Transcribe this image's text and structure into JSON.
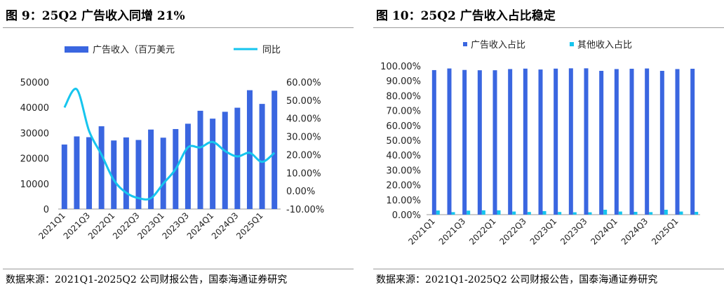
{
  "left_panel": {
    "title": "图 9：25Q2 广告收入同增 21%",
    "source": "数据来源：2021Q1-2025Q2 公司财报公告，国泰海通证券研究"
  },
  "right_panel": {
    "title": "图 10：25Q2 广告收入占比稳定",
    "source": "数据来源：2021Q1-2025Q2 公司财报公告，国泰海通证券研究"
  },
  "colors": {
    "blue": "#3a66e0",
    "cyan": "#16c5ee",
    "axis": "#999999"
  },
  "chart_data": [
    {
      "type": "bar",
      "title": "",
      "categories": [
        "2021Q1",
        "2021Q2",
        "2021Q3",
        "2021Q4",
        "2022Q1",
        "2022Q2",
        "2022Q3",
        "2022Q4",
        "2023Q1",
        "2023Q2",
        "2023Q3",
        "2023Q4",
        "2024Q1",
        "2024Q2",
        "2024Q3",
        "2024Q4",
        "2025Q1",
        "2025Q2"
      ],
      "x_tick_labels": [
        "2021Q1",
        "2021Q3",
        "2022Q1",
        "2022Q3",
        "2023Q1",
        "2023Q3",
        "2024Q1",
        "2024Q3",
        "2025Q1"
      ],
      "series": [
        {
          "name": "广告收入（百万美元",
          "type": "bar",
          "axis": "left",
          "values": [
            25400,
            28600,
            28300,
            32600,
            27000,
            28200,
            27200,
            31300,
            28100,
            31500,
            33600,
            38700,
            35600,
            38300,
            39900,
            46800,
            41400,
            46600
          ]
        },
        {
          "name": "同比",
          "type": "line",
          "axis": "right",
          "values": [
            46,
            56,
            33,
            20,
            6,
            -1,
            -4,
            -4,
            4,
            12,
            24,
            24,
            27,
            22,
            19,
            21,
            16,
            21
          ]
        }
      ],
      "y_left": {
        "min": 0,
        "max": 50000,
        "ticks": [
          "0",
          "10000",
          "20000",
          "30000",
          "40000",
          "50000"
        ]
      },
      "y_right": {
        "min": -10,
        "max": 60,
        "ticks": [
          "-10.00%",
          "0.00%",
          "10.00%",
          "20.00%",
          "30.00%",
          "40.00%",
          "50.00%",
          "60.00%"
        ]
      },
      "legend": "top"
    },
    {
      "type": "bar",
      "title": "",
      "categories": [
        "2021Q1",
        "2021Q2",
        "2021Q3",
        "2021Q4",
        "2022Q1",
        "2022Q2",
        "2022Q3",
        "2022Q4",
        "2023Q1",
        "2023Q2",
        "2023Q3",
        "2023Q4",
        "2024Q1",
        "2024Q2",
        "2024Q3",
        "2024Q4",
        "2025Q1",
        "2025Q2"
      ],
      "x_tick_labels": [
        "2021Q1",
        "2021Q3",
        "2022Q1",
        "2022Q3",
        "2023Q1",
        "2023Q3",
        "2024Q1",
        "2024Q3",
        "2025Q1"
      ],
      "series": [
        {
          "name": "广告收入占比",
          "values": [
            97.2,
            98.3,
            97.3,
            97.1,
            97.1,
            97.9,
            98.2,
            97.6,
            98.2,
            98.4,
            98.4,
            96.7,
            97.9,
            98.1,
            98.3,
            96.7,
            97.9,
            98.1
          ]
        },
        {
          "name": "其他收入占比",
          "values": [
            2.8,
            1.7,
            2.7,
            2.9,
            2.9,
            2.1,
            1.8,
            2.4,
            1.8,
            1.6,
            1.6,
            3.3,
            2.1,
            1.9,
            1.7,
            3.3,
            2.1,
            1.9
          ]
        }
      ],
      "y": {
        "min": 0,
        "max": 100,
        "ticks": [
          "0.00%",
          "10.00%",
          "20.00%",
          "30.00%",
          "40.00%",
          "50.00%",
          "60.00%",
          "70.00%",
          "80.00%",
          "90.00%",
          "100.00%"
        ]
      },
      "legend": "top"
    }
  ]
}
